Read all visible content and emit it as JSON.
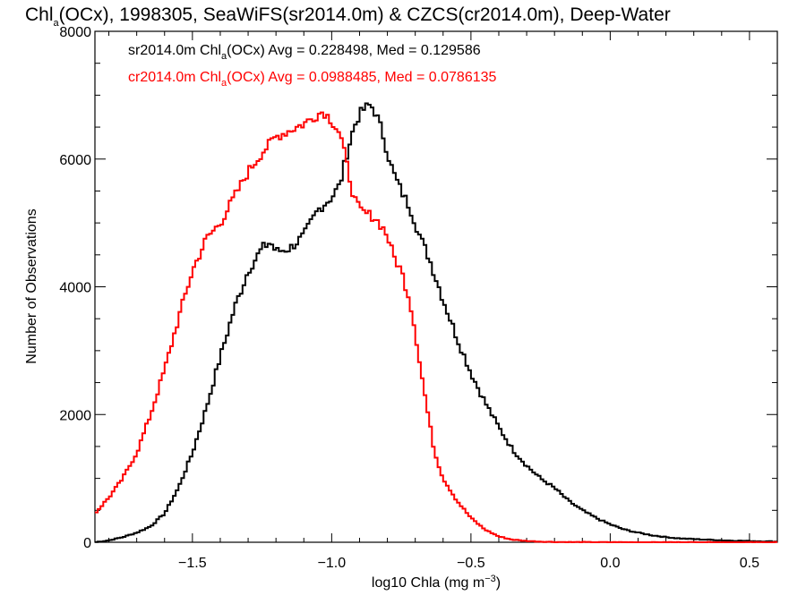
{
  "chart_data": {
    "type": "line",
    "title": {
      "pre": "Chl",
      "sub": "a",
      "post": "(OCx), 1998305, SeaWiFS(sr2014.0m) & CZCS(cr2014.0m), Deep-Water"
    },
    "xlabel": {
      "pre": "log10 Chla (mg m",
      "sup": "−3",
      "post": ")"
    },
    "ylabel": "Number of Observations",
    "xlim": [
      -1.85,
      0.6
    ],
    "ylim": [
      0,
      8000
    ],
    "xticks": [
      -1.5,
      -1.0,
      -0.5,
      0.0,
      0.5
    ],
    "xtick_labels": [
      "−1.5",
      "−1.0",
      "−0.5",
      "0.0",
      "0.5"
    ],
    "yticks": [
      0,
      2000,
      4000,
      6000,
      8000
    ],
    "ytick_labels": [
      "0",
      "2000",
      "4000",
      "6000",
      "8000"
    ],
    "grid": false,
    "annotations": [
      {
        "pre": "sr2014.0m Chl",
        "sub": "a",
        "post": "(OCx) Avg = 0.228498, Med = 0.129586",
        "color": "#000000"
      },
      {
        "pre": "cr2014.0m Chl",
        "sub": "a",
        "post": "(OCx) Avg = 0.0988485, Med = 0.0786135",
        "color": "#ff0000"
      }
    ],
    "series": [
      {
        "color": "#000000",
        "x": [
          -1.85,
          -1.8,
          -1.75,
          -1.7,
          -1.65,
          -1.6,
          -1.55,
          -1.5,
          -1.45,
          -1.4,
          -1.35,
          -1.3,
          -1.25,
          -1.22,
          -1.2,
          -1.15,
          -1.1,
          -1.05,
          -1.0,
          -0.97,
          -0.95,
          -0.92,
          -0.9,
          -0.88,
          -0.86,
          -0.84,
          -0.82,
          -0.8,
          -0.78,
          -0.75,
          -0.72,
          -0.7,
          -0.68,
          -0.65,
          -0.6,
          -0.55,
          -0.5,
          -0.45,
          -0.4,
          -0.35,
          -0.3,
          -0.25,
          -0.2,
          -0.15,
          -0.1,
          -0.05,
          0.0,
          0.05,
          0.1,
          0.15,
          0.2,
          0.25,
          0.3,
          0.35,
          0.4,
          0.45,
          0.5,
          0.55,
          0.6
        ],
        "y": [
          0,
          30,
          80,
          150,
          250,
          450,
          850,
          1400,
          2100,
          2900,
          3650,
          4250,
          4600,
          4700,
          4550,
          4600,
          4800,
          5200,
          5400,
          5600,
          6000,
          6500,
          6700,
          6800,
          6850,
          6700,
          6450,
          6100,
          5800,
          5500,
          5250,
          5000,
          4750,
          4450,
          3800,
          3200,
          2650,
          2200,
          1800,
          1450,
          1200,
          1000,
          850,
          650,
          500,
          380,
          280,
          200,
          150,
          110,
          80,
          60,
          50,
          40,
          30,
          25,
          20,
          15,
          10
        ]
      },
      {
        "color": "#ff0000",
        "x": [
          -1.85,
          -1.8,
          -1.75,
          -1.7,
          -1.65,
          -1.6,
          -1.55,
          -1.5,
          -1.45,
          -1.4,
          -1.35,
          -1.3,
          -1.25,
          -1.2,
          -1.15,
          -1.1,
          -1.05,
          -1.03,
          -1.0,
          -0.97,
          -0.95,
          -0.92,
          -0.9,
          -0.88,
          -0.85,
          -0.82,
          -0.8,
          -0.78,
          -0.75,
          -0.72,
          -0.7,
          -0.68,
          -0.65,
          -0.63,
          -0.6,
          -0.55,
          -0.5,
          -0.45,
          -0.4,
          -0.35,
          -0.3,
          -0.25,
          -0.2,
          -0.15,
          -0.1,
          -0.05,
          0.0,
          0.1,
          0.2,
          0.3,
          0.4,
          0.5,
          0.6
        ],
        "y": [
          450,
          700,
          1000,
          1400,
          2000,
          2700,
          3500,
          4250,
          4750,
          5000,
          5400,
          5800,
          6100,
          6350,
          6450,
          6550,
          6700,
          6750,
          6600,
          6400,
          6000,
          5400,
          5200,
          5150,
          5100,
          4950,
          4800,
          4500,
          4250,
          3800,
          3300,
          2700,
          1900,
          1400,
          1000,
          650,
          380,
          200,
          90,
          40,
          20,
          10,
          5,
          3,
          2,
          1,
          0,
          0,
          0,
          0,
          0,
          0,
          0
        ]
      }
    ]
  }
}
